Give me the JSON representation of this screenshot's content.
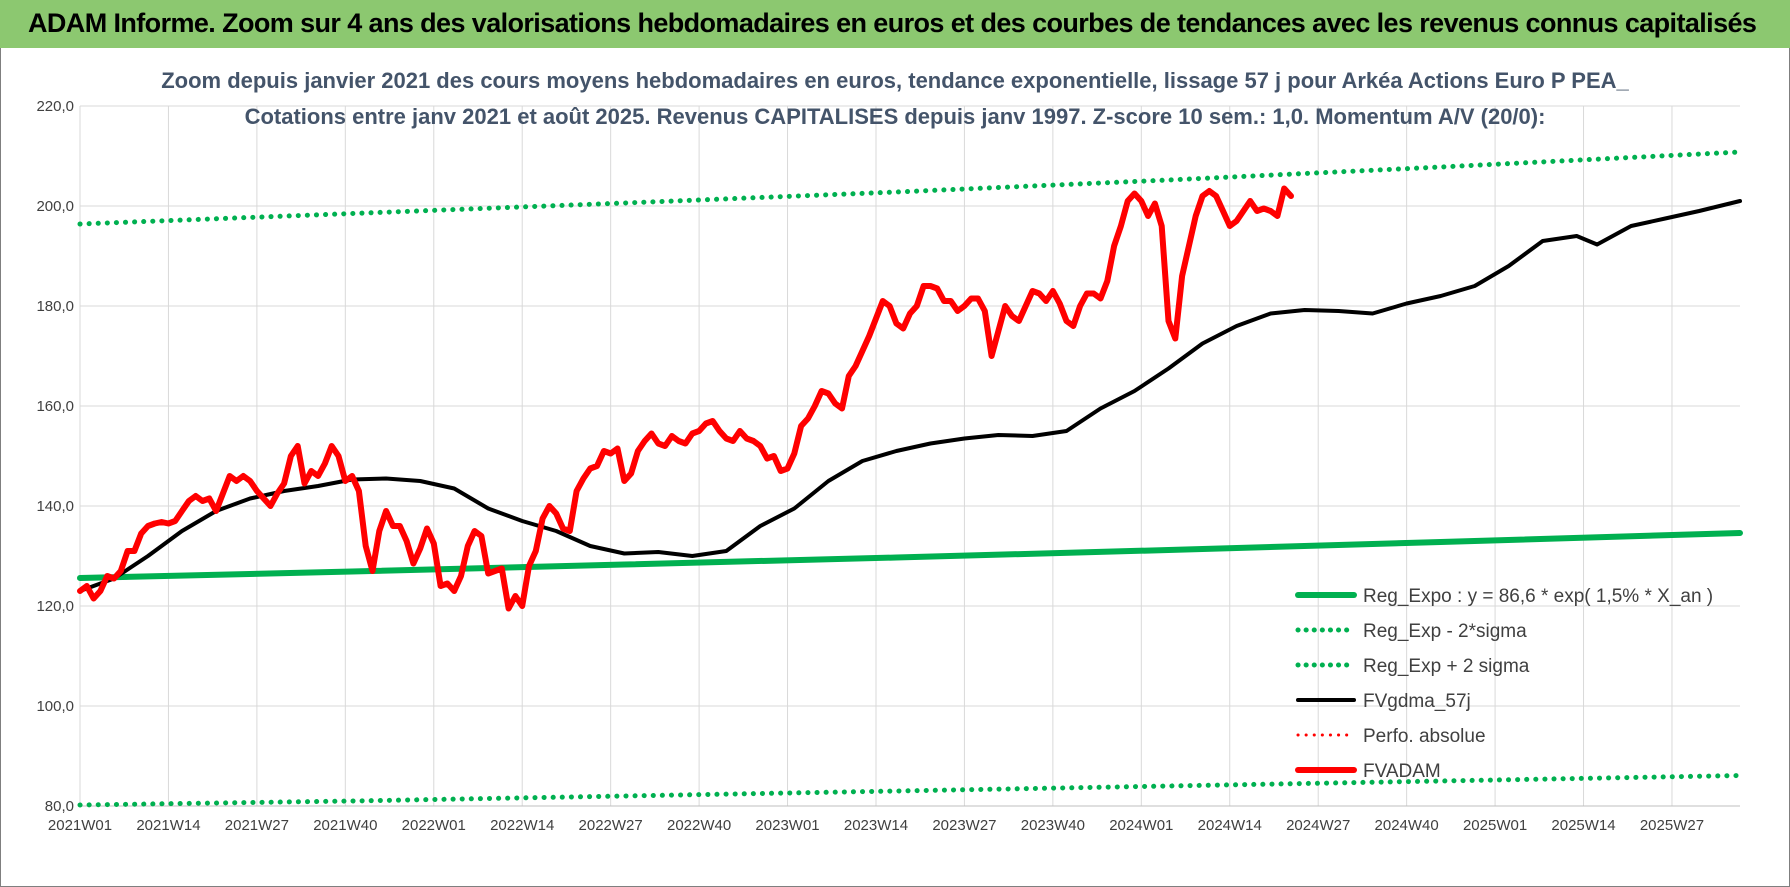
{
  "banner": {
    "title": "ADAM Informe. Zoom sur 4 ans des valorisations hebdomadaires en euros et des courbes de tendances avec les revenus connus capitalisés"
  },
  "colors": {
    "banner_bg": "#8cc870",
    "green": "#00b050",
    "red": "#ff0000",
    "black": "#000000",
    "title_text": "#44546a",
    "grid": "#d9d9d9"
  },
  "chart_data": {
    "type": "line",
    "title_line1": "Zoom depuis janvier 2021 des cours moyens hebdomadaires en euros, tendance exponentielle, lissage 57 j pour Arkéa Actions Euro P PEA_",
    "title_line2": "Cotations entre janv 2021 et août 2025. Revenus CAPITALISES depuis janv 1997. Z-score 10 sem.: 1,0. Momentum A/V (20/0):",
    "xlabel": "",
    "ylabel": "",
    "ylim": [
      80,
      220
    ],
    "yticks": [
      "80,0",
      "100,0",
      "120,0",
      "140,0",
      "160,0",
      "180,0",
      "200,0",
      "220,0"
    ],
    "ytick_values": [
      80,
      100,
      120,
      140,
      160,
      180,
      200,
      220
    ],
    "xticks": [
      "2021W01",
      "2021W14",
      "2021W27",
      "2021W40",
      "2022W01",
      "2022W14",
      "2022W27",
      "2022W40",
      "2023W01",
      "2023W14",
      "2023W27",
      "2023W40",
      "2024W01",
      "2024W14",
      "2024W27",
      "2024W40",
      "2025W01",
      "2025W14",
      "2025W27"
    ],
    "xtick_weeks": [
      0,
      13,
      26,
      39,
      52,
      65,
      78,
      91,
      104,
      117,
      130,
      143,
      156,
      169,
      182,
      195,
      208,
      221,
      234
    ],
    "x_range_weeks": [
      0,
      244
    ],
    "grid": true,
    "legend_position": "bottom-right",
    "series": [
      {
        "name": "Reg_Expo : y = 86,6 * exp( 1,5% *  X_an )",
        "style": "solid",
        "color": "#00b050",
        "width": 6,
        "points": [
          [
            0,
            125.6
          ],
          [
            40,
            126.9
          ],
          [
            80,
            128.3
          ],
          [
            120,
            129.7
          ],
          [
            160,
            131.2
          ],
          [
            200,
            132.8
          ],
          [
            244,
            134.6
          ]
        ]
      },
      {
        "name": "Reg_Exp - 2*sigma",
        "style": "dotted",
        "color": "#00b050",
        "width": 5,
        "points": [
          [
            0,
            80.2
          ],
          [
            40,
            81.0
          ],
          [
            80,
            82.0
          ],
          [
            120,
            83.0
          ],
          [
            160,
            84.0
          ],
          [
            200,
            85.0
          ],
          [
            244,
            86.1
          ]
        ]
      },
      {
        "name": "Reg_Exp + 2 sigma",
        "style": "dotted",
        "color": "#00b050",
        "width": 5,
        "points": [
          [
            0,
            196.4
          ],
          [
            40,
            198.5
          ],
          [
            80,
            200.6
          ],
          [
            120,
            202.8
          ],
          [
            160,
            205.2
          ],
          [
            200,
            207.8
          ],
          [
            244,
            210.8
          ]
        ]
      },
      {
        "name": "FVgdma_57j",
        "style": "solid",
        "color": "#000000",
        "width": 4,
        "points": [
          [
            0,
            123
          ],
          [
            5,
            125.5
          ],
          [
            10,
            130
          ],
          [
            15,
            135
          ],
          [
            20,
            139
          ],
          [
            25,
            141.5
          ],
          [
            30,
            143
          ],
          [
            35,
            144
          ],
          [
            40,
            145.3
          ],
          [
            45,
            145.5
          ],
          [
            50,
            145
          ],
          [
            55,
            143.5
          ],
          [
            60,
            139.5
          ],
          [
            65,
            137
          ],
          [
            70,
            135
          ],
          [
            75,
            132
          ],
          [
            80,
            130.5
          ],
          [
            85,
            130.8
          ],
          [
            90,
            130
          ],
          [
            95,
            131
          ],
          [
            100,
            136
          ],
          [
            105,
            139.5
          ],
          [
            110,
            145
          ],
          [
            115,
            149
          ],
          [
            120,
            151
          ],
          [
            125,
            152.5
          ],
          [
            130,
            153.5
          ],
          [
            135,
            154.2
          ],
          [
            140,
            154
          ],
          [
            145,
            155
          ],
          [
            150,
            159.5
          ],
          [
            155,
            163
          ],
          [
            160,
            167.5
          ],
          [
            165,
            172.5
          ],
          [
            170,
            176
          ],
          [
            175,
            178.5
          ],
          [
            180,
            179.2
          ],
          [
            185,
            179
          ],
          [
            190,
            178.5
          ],
          [
            195,
            180.5
          ],
          [
            200,
            182
          ],
          [
            205,
            184
          ],
          [
            210,
            188
          ],
          [
            215,
            193
          ],
          [
            220,
            194
          ],
          [
            223,
            192.3
          ],
          [
            228,
            196
          ],
          [
            233,
            197.5
          ],
          [
            238,
            199
          ],
          [
            244,
            201
          ]
        ]
      },
      {
        "name": "Perfo. absolue",
        "style": "dotted",
        "color": "#ff0000",
        "width": 3,
        "points": []
      },
      {
        "name": "FVADAM",
        "style": "solid",
        "color": "#ff0000",
        "width": 6,
        "points": [
          [
            0,
            123
          ],
          [
            1,
            124
          ],
          [
            2,
            121.5
          ],
          [
            3,
            123
          ],
          [
            4,
            126
          ],
          [
            5,
            125.5
          ],
          [
            6,
            127
          ],
          [
            7,
            131
          ],
          [
            8,
            131
          ],
          [
            9,
            134.5
          ],
          [
            10,
            136
          ],
          [
            11,
            136.5
          ],
          [
            12,
            136.8
          ],
          [
            13,
            136.5
          ],
          [
            14,
            137
          ],
          [
            15,
            139
          ],
          [
            16,
            141
          ],
          [
            17,
            142
          ],
          [
            18,
            141
          ],
          [
            19,
            141.5
          ],
          [
            20,
            139
          ],
          [
            21,
            142.5
          ],
          [
            22,
            146
          ],
          [
            23,
            145
          ],
          [
            24,
            146
          ],
          [
            25,
            145
          ],
          [
            26,
            143
          ],
          [
            27,
            141.5
          ],
          [
            28,
            140
          ],
          [
            29,
            142.5
          ],
          [
            30,
            144.5
          ],
          [
            31,
            150
          ],
          [
            32,
            152
          ],
          [
            33,
            144.5
          ],
          [
            34,
            147
          ],
          [
            35,
            146
          ],
          [
            36,
            148.5
          ],
          [
            37,
            152
          ],
          [
            38,
            150
          ],
          [
            39,
            145
          ],
          [
            40,
            146
          ],
          [
            41,
            143
          ],
          [
            42,
            132
          ],
          [
            43,
            127
          ],
          [
            44,
            135
          ],
          [
            45,
            139
          ],
          [
            46,
            136
          ],
          [
            47,
            136
          ],
          [
            48,
            133
          ],
          [
            49,
            128.5
          ],
          [
            50,
            131.5
          ],
          [
            51,
            135.5
          ],
          [
            52,
            132.5
          ],
          [
            53,
            124
          ],
          [
            54,
            124.5
          ],
          [
            55,
            123
          ],
          [
            56,
            126
          ],
          [
            57,
            132
          ],
          [
            58,
            135
          ],
          [
            59,
            134
          ],
          [
            60,
            126.5
          ],
          [
            61,
            127
          ],
          [
            62,
            127.5
          ],
          [
            63,
            119.5
          ],
          [
            64,
            122
          ],
          [
            65,
            120
          ],
          [
            66,
            128
          ],
          [
            67,
            131
          ],
          [
            68,
            137.5
          ],
          [
            69,
            140
          ],
          [
            70,
            138.5
          ],
          [
            71,
            135.5
          ],
          [
            72,
            135
          ],
          [
            73,
            143
          ],
          [
            74,
            145.5
          ],
          [
            75,
            147.5
          ],
          [
            76,
            148
          ],
          [
            77,
            151
          ],
          [
            78,
            150.5
          ],
          [
            79,
            151.5
          ],
          [
            80,
            145
          ],
          [
            81,
            146.5
          ],
          [
            82,
            151
          ],
          [
            83,
            153
          ],
          [
            84,
            154.5
          ],
          [
            85,
            152.5
          ],
          [
            86,
            152
          ],
          [
            87,
            154
          ],
          [
            88,
            153
          ],
          [
            89,
            152.5
          ],
          [
            90,
            154.5
          ],
          [
            91,
            155
          ],
          [
            92,
            156.5
          ],
          [
            93,
            157
          ],
          [
            94,
            155
          ],
          [
            95,
            153.5
          ],
          [
            96,
            153
          ],
          [
            97,
            155
          ],
          [
            98,
            153.5
          ],
          [
            99,
            153
          ],
          [
            100,
            152
          ],
          [
            101,
            149.5
          ],
          [
            102,
            150
          ],
          [
            103,
            147
          ],
          [
            104,
            147.5
          ],
          [
            105,
            150.5
          ],
          [
            106,
            156
          ],
          [
            107,
            157.5
          ],
          [
            108,
            160
          ],
          [
            109,
            163
          ],
          [
            110,
            162.5
          ],
          [
            111,
            160.5
          ],
          [
            112,
            159.5
          ],
          [
            113,
            166
          ],
          [
            114,
            168
          ],
          [
            115,
            171
          ],
          [
            116,
            174
          ],
          [
            117,
            177.5
          ],
          [
            118,
            181
          ],
          [
            119,
            180
          ],
          [
            120,
            176.5
          ],
          [
            121,
            175.5
          ],
          [
            122,
            178.5
          ],
          [
            123,
            180
          ],
          [
            124,
            184
          ],
          [
            125,
            184
          ],
          [
            126,
            183.5
          ],
          [
            127,
            181
          ],
          [
            128,
            181
          ],
          [
            129,
            179
          ],
          [
            130,
            180
          ],
          [
            131,
            181.5
          ],
          [
            132,
            181.5
          ],
          [
            133,
            179
          ],
          [
            134,
            170
          ],
          [
            135,
            175
          ],
          [
            136,
            180
          ],
          [
            137,
            178
          ],
          [
            138,
            177
          ],
          [
            139,
            180
          ],
          [
            140,
            183
          ],
          [
            141,
            182.5
          ],
          [
            142,
            181
          ],
          [
            143,
            183
          ],
          [
            144,
            180.5
          ],
          [
            145,
            177
          ],
          [
            146,
            176
          ],
          [
            147,
            180
          ],
          [
            148,
            182.5
          ],
          [
            149,
            182.5
          ],
          [
            150,
            181.5
          ],
          [
            151,
            185
          ],
          [
            152,
            192
          ],
          [
            153,
            196
          ],
          [
            154,
            201
          ],
          [
            155,
            202.5
          ],
          [
            156,
            201
          ],
          [
            157,
            198
          ],
          [
            158,
            200.5
          ],
          [
            159,
            196
          ],
          [
            160,
            177
          ],
          [
            161,
            173.5
          ],
          [
            162,
            186
          ],
          [
            163,
            192
          ],
          [
            164,
            198
          ],
          [
            165,
            202
          ],
          [
            166,
            203
          ],
          [
            167,
            202
          ],
          [
            168,
            199
          ],
          [
            169,
            196
          ],
          [
            170,
            197
          ],
          [
            171,
            199
          ],
          [
            172,
            201
          ],
          [
            173,
            199
          ],
          [
            174,
            199.5
          ],
          [
            175,
            199
          ],
          [
            176,
            198
          ],
          [
            177,
            203.5
          ],
          [
            178,
            202
          ]
        ]
      }
    ]
  },
  "legend": [
    {
      "label": "Reg_Expo : y = 86,6 * exp( 1,5% *  X_an )",
      "style": "solid",
      "color": "#00b050"
    },
    {
      "label": "Reg_Exp - 2*sigma",
      "style": "dotted",
      "color": "#00b050"
    },
    {
      "label": "Reg_Exp + 2 sigma",
      "style": "dotted",
      "color": "#00b050"
    },
    {
      "label": "FVgdma_57j",
      "style": "solid",
      "color": "#000000"
    },
    {
      "label": "Perfo. absolue",
      "style": "dotted",
      "color": "#ff0000"
    },
    {
      "label": "FVADAM",
      "style": "solid",
      "color": "#ff0000"
    }
  ]
}
